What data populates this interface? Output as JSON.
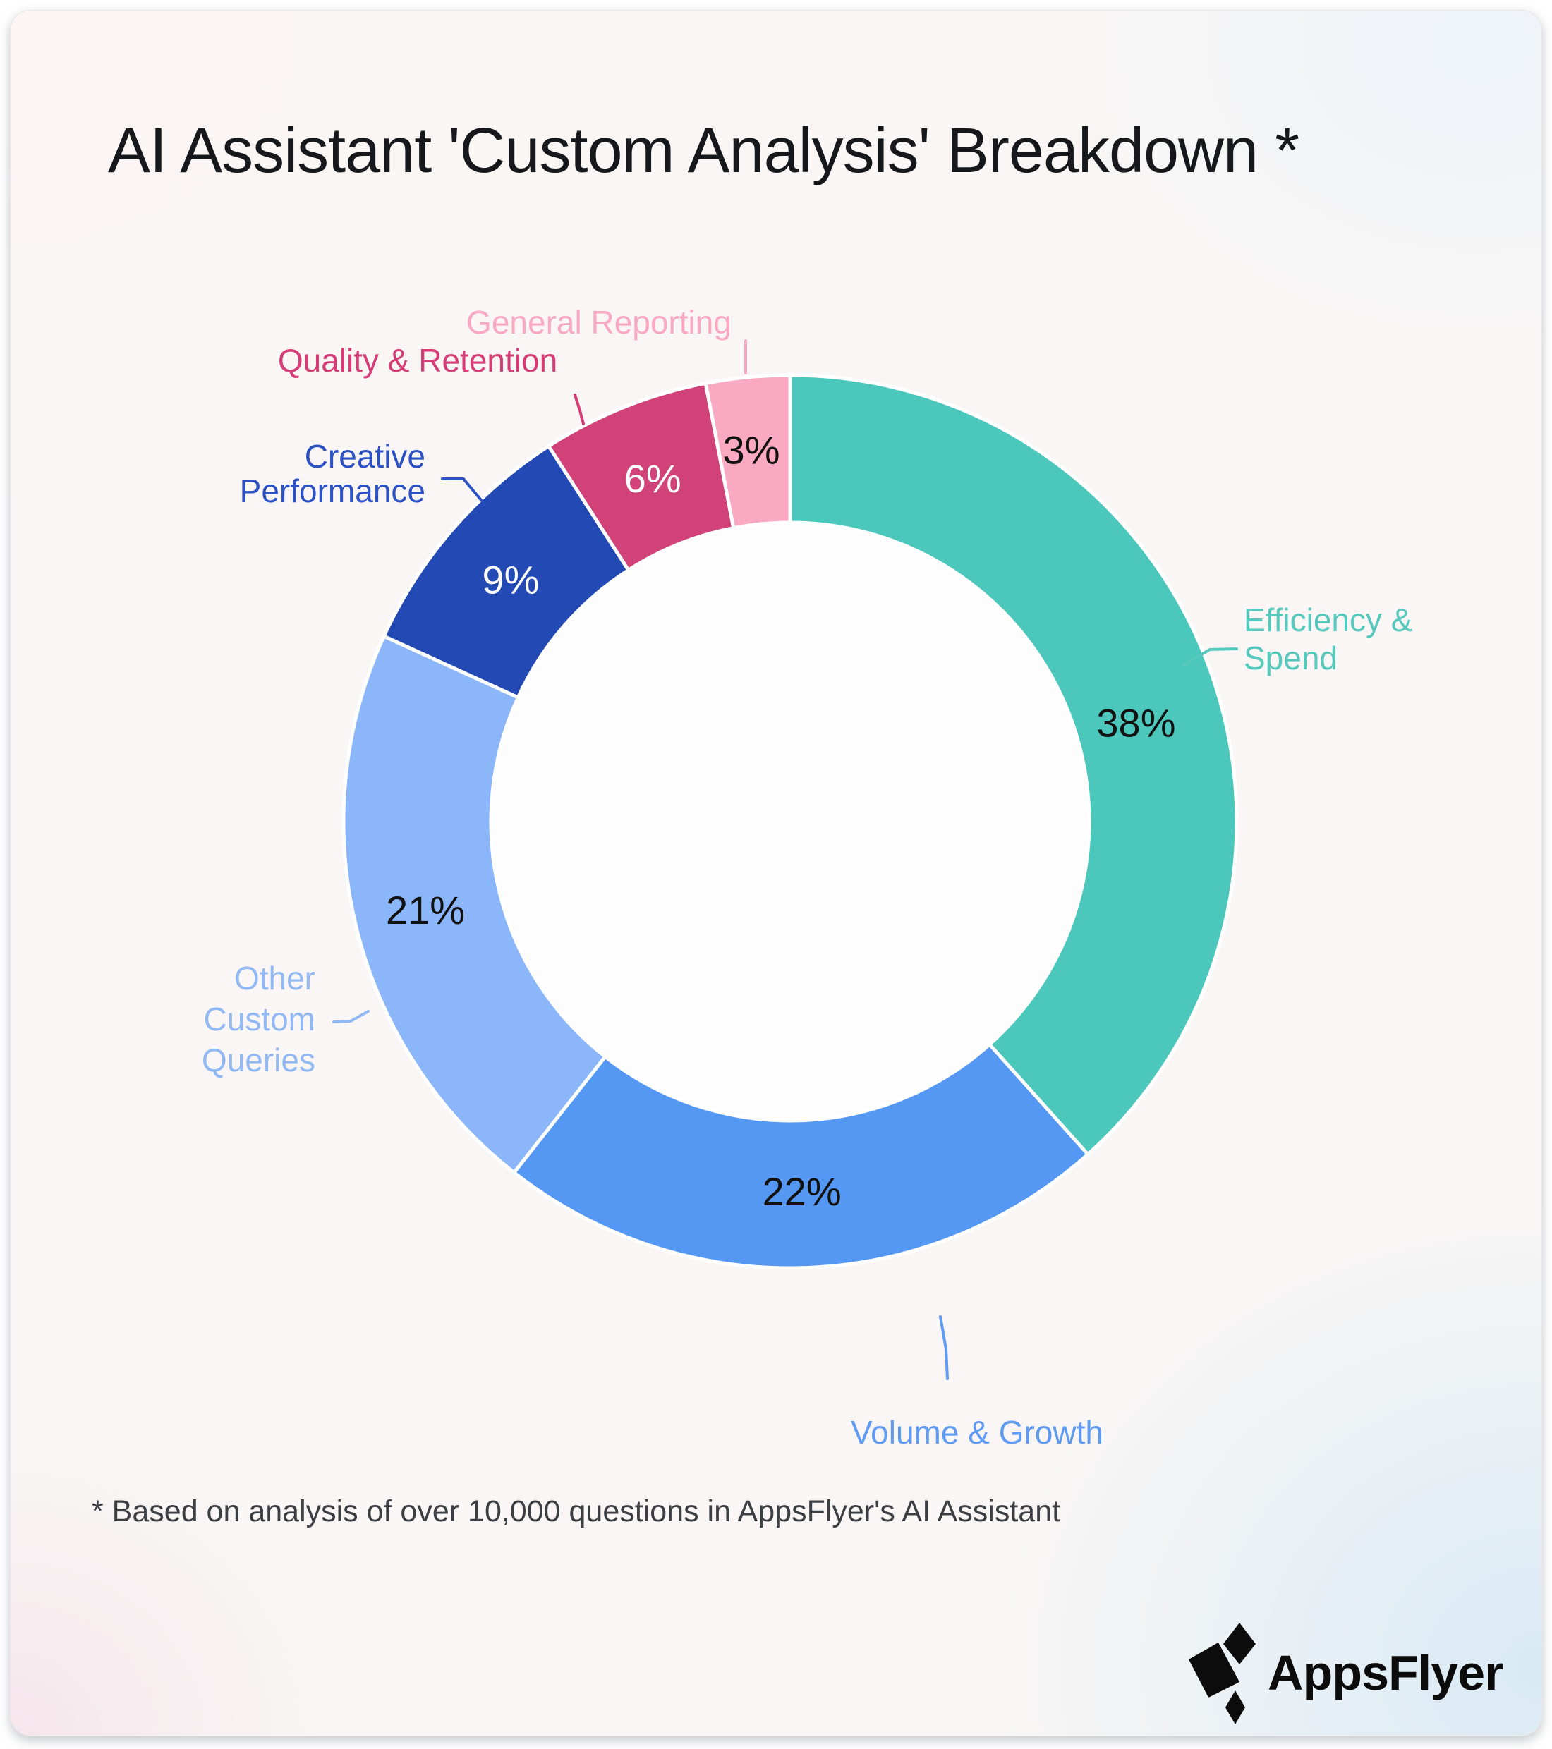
{
  "title": "AI Assistant 'Custom Analysis' Breakdown *",
  "footnote": "* Based on analysis of over 10,000 questions in AppsFlyer's AI Assistant",
  "logo": {
    "text": "AppsFlyer",
    "icon": "appsflyer-logo-icon",
    "color": "#0c0c0d"
  },
  "chart_data": {
    "type": "pie",
    "subtype": "donut",
    "title": "AI Assistant 'Custom Analysis' Breakdown",
    "start_angle_deg": 0,
    "direction": "clockwise",
    "values_total": 99,
    "slices": [
      {
        "label": "Efficiency & Spend",
        "value": 38,
        "value_text": "38%",
        "color": "#4cc7bc",
        "label_color": "#56c8bc",
        "value_text_color": "#111111"
      },
      {
        "label": "Volume & Growth",
        "value": 22,
        "value_text": "22%",
        "color": "#5598f3",
        "label_color": "#5f9bf2",
        "value_text_color": "#111111"
      },
      {
        "label": "Other Custom Queries",
        "value": 21,
        "value_text": "21%",
        "color": "#8bb7fa",
        "label_color": "#93b9f4",
        "value_text_color": "#111111"
      },
      {
        "label": "Creative Performance",
        "value": 9,
        "value_text": "9%",
        "color": "#2349b5",
        "label_color": "#2b51c4",
        "value_text_color": "#ffffff"
      },
      {
        "label": "Quality & Retention",
        "value": 6,
        "value_text": "6%",
        "color": "#d14278",
        "label_color": "#d63c75",
        "value_text_color": "#ffffff"
      },
      {
        "label": "General Reporting",
        "value": 3,
        "value_text": "3%",
        "color": "#f9a9c1",
        "label_color": "#f9a9c4",
        "value_text_color": "#111111"
      }
    ]
  }
}
